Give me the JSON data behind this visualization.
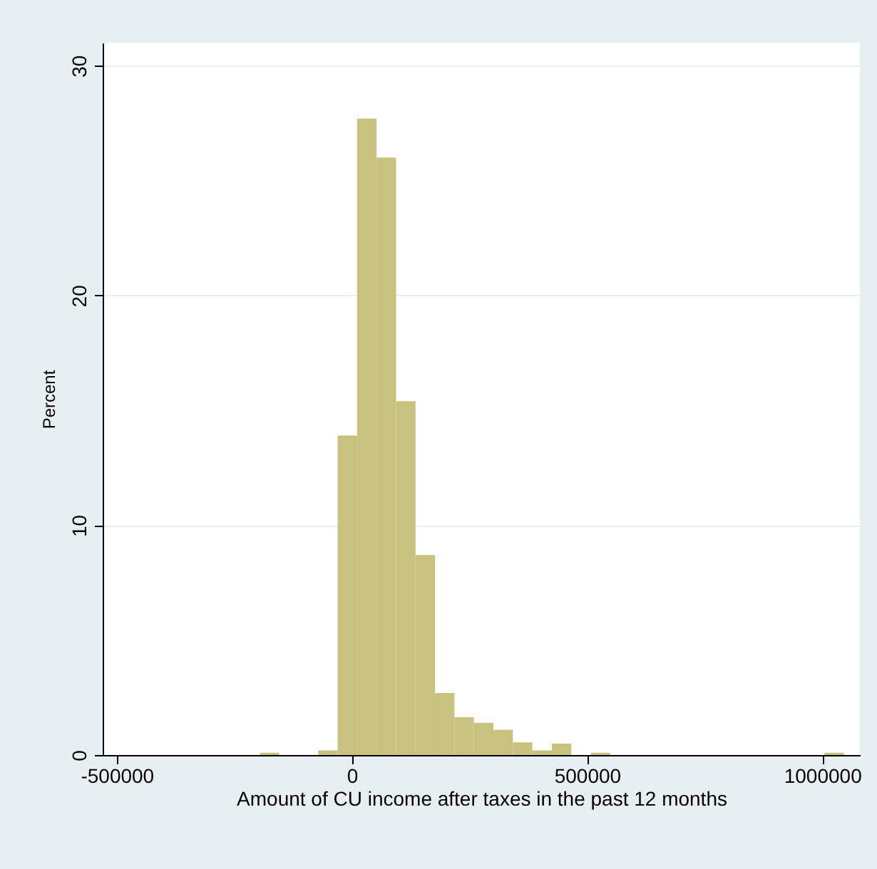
{
  "chart_data": {
    "type": "histogram",
    "xlabel": "Amount of CU income after taxes in the past 12 months",
    "ylabel": "Percent",
    "bins": [
      -196000,
      -154600,
      -113200,
      -71800,
      -30400,
      11000,
      52400,
      93800,
      135200,
      176600,
      218000,
      259400,
      300800,
      342200,
      383600,
      425000,
      466400,
      507800,
      549200,
      590600,
      632000,
      673400,
      714800,
      756200,
      797600,
      839000,
      880400,
      921800,
      963200,
      1004600,
      1046000
    ],
    "values": [
      0.1,
      0,
      0,
      0.2,
      13.9,
      27.7,
      26.0,
      15.4,
      8.7,
      2.7,
      1.65,
      1.4,
      1.1,
      0.55,
      0.2,
      0.5,
      0,
      0.1,
      0,
      0,
      0,
      0,
      0,
      0,
      0,
      0,
      0,
      0,
      0,
      0.1
    ],
    "color": "#c9c27e",
    "xlim": [
      -530000,
      1080000
    ],
    "xticks": [
      -500000,
      0,
      500000,
      1000000
    ],
    "ylim": [
      0,
      31
    ],
    "yticks": [
      0,
      10,
      20,
      30
    ],
    "grid": "y"
  }
}
